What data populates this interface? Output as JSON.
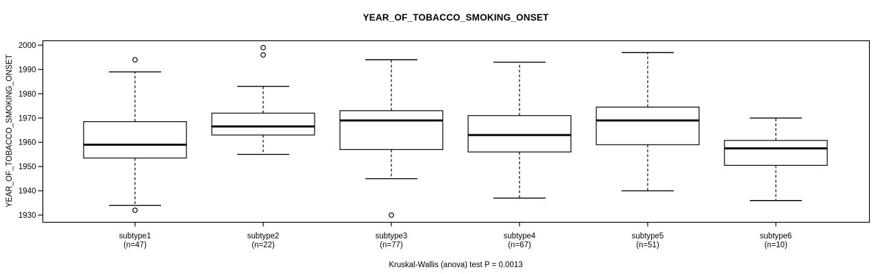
{
  "chart_data": {
    "type": "boxplot",
    "title": "YEAR_OF_TOBACCO_SMOKING_ONSET",
    "ylabel": "YEAR_OF_TOBACCO_SMOKING_ONSET",
    "xlabel": "",
    "footer": "Kruskal-Wallis (anova) test P = 0.0013",
    "ylim": [
      1927,
      2002
    ],
    "yticks": [
      1930,
      1940,
      1950,
      1960,
      1970,
      1980,
      1990,
      2000
    ],
    "grid": false,
    "legend": "none",
    "groups": [
      {
        "label": "subtype1",
        "n_label": "(n=47)",
        "n": 47,
        "whisker_low": 1934,
        "q1": 1953.5,
        "median": 1959,
        "q3": 1968.5,
        "whisker_high": 1989,
        "outliers": [
          1994,
          1932
        ]
      },
      {
        "label": "subtype2",
        "n_label": "(n=22)",
        "n": 22,
        "whisker_low": 1955,
        "q1": 1963,
        "median": 1966.5,
        "q3": 1972,
        "whisker_high": 1983,
        "outliers": [
          1996,
          1999
        ]
      },
      {
        "label": "subtype3",
        "n_label": "(n=77)",
        "n": 77,
        "whisker_low": 1945,
        "q1": 1957,
        "median": 1969,
        "q3": 1973,
        "whisker_high": 1994,
        "outliers": [
          1930
        ]
      },
      {
        "label": "subtype4",
        "n_label": "(n=67)",
        "n": 67,
        "whisker_low": 1937,
        "q1": 1956,
        "median": 1963,
        "q3": 1971,
        "whisker_high": 1993,
        "outliers": []
      },
      {
        "label": "subtype5",
        "n_label": "(n=51)",
        "n": 51,
        "whisker_low": 1940,
        "q1": 1959,
        "median": 1969,
        "q3": 1974.5,
        "whisker_high": 1997,
        "outliers": []
      },
      {
        "label": "subtype6",
        "n_label": "(n=10)",
        "n": 10,
        "whisker_low": 1936,
        "q1": 1950.5,
        "median": 1957.5,
        "q3": 1960.75,
        "whisker_high": 1970,
        "outliers": []
      }
    ],
    "colors": {
      "line": "#000000",
      "box_fill": "#ffffff",
      "background": "#ffffff"
    }
  }
}
